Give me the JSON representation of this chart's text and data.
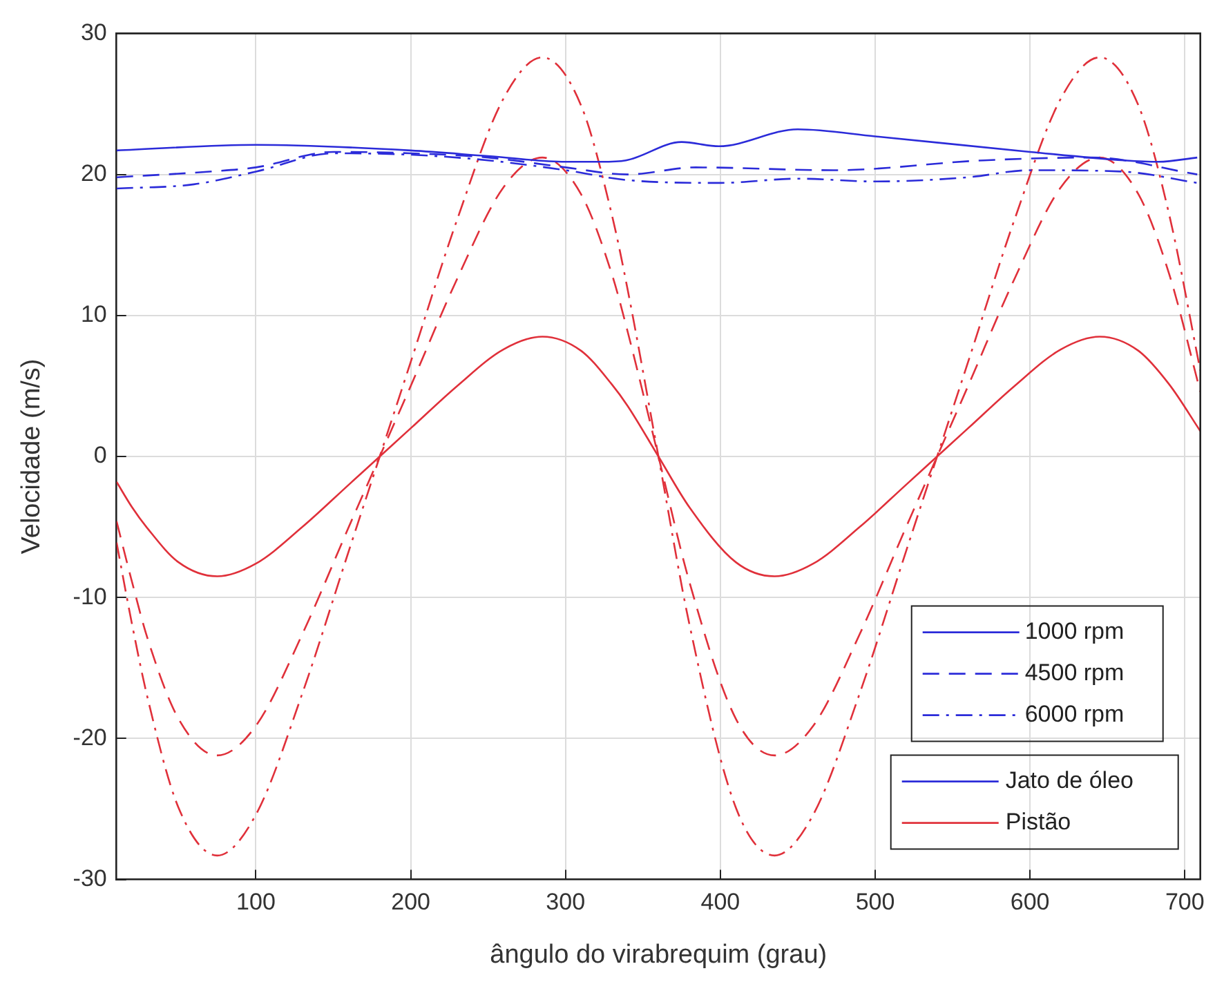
{
  "chart_data": {
    "type": "line",
    "xlabel": "ângulo do virabrequim (grau)",
    "ylabel": "Velocidade (m/s)",
    "xlim": [
      10,
      710
    ],
    "xticks": [
      100,
      200,
      300,
      400,
      500,
      600,
      700
    ],
    "ylim": [
      -30,
      30
    ],
    "yticks": [
      -30,
      -20,
      -10,
      0,
      10,
      20,
      30
    ],
    "grid": true,
    "legend": "bottom right",
    "annotations": [
      "Jato de óleo"
    ],
    "series": [
      {
        "name": "1000 rpm",
        "color": "#2b2bd9",
        "line_style": "solid",
        "x": [
          10,
          100,
          200,
          250,
          300,
          323,
          339,
          375,
          399,
          450,
          500,
          600,
          661,
          683,
          708
        ],
        "values": [
          21.7,
          22.1,
          21.7,
          21.3,
          20.9,
          20.9,
          21.0,
          22.3,
          22.0,
          23.2,
          22.7,
          21.6,
          21.0,
          20.9,
          21.2
        ]
      },
      {
        "name": "4500 rpm",
        "color": "#2b2bd9",
        "line_style": "dashed",
        "x": [
          10,
          70,
          100,
          150,
          200,
          250,
          300,
          340,
          384,
          473,
          570,
          640,
          708
        ],
        "values": [
          19.8,
          20.2,
          20.5,
          21.6,
          21.5,
          21.2,
          20.5,
          20.0,
          20.5,
          20.3,
          21.0,
          21.2,
          20.0
        ]
      },
      {
        "name": "6000 rpm",
        "color": "#2b2bd9",
        "line_style": "dashdot",
        "x": [
          10,
          60,
          100,
          150,
          200,
          250,
          300,
          340,
          400,
          450,
          500,
          560,
          600,
          660,
          708
        ],
        "values": [
          19.0,
          19.3,
          20.2,
          21.5,
          21.4,
          21.0,
          20.3,
          19.6,
          19.4,
          19.7,
          19.5,
          19.8,
          20.3,
          20.2,
          19.4
        ]
      },
      {
        "name": "Pistão",
        "color": "#e0303a",
        "line_style": "solid",
        "x": [
          10,
          20,
          30,
          50,
          75,
          100,
          130,
          160,
          180,
          200,
          230,
          260,
          285,
          310,
          330,
          340,
          360,
          380,
          410,
          435,
          460,
          490,
          520,
          540,
          560,
          590,
          620,
          645,
          670,
          690,
          710
        ],
        "values": [
          -1.8,
          -3.6,
          -5.1,
          -7.5,
          -8.5,
          -7.6,
          -5.0,
          -2.0,
          0,
          2.0,
          5.0,
          7.6,
          8.5,
          7.5,
          5.1,
          3.6,
          0,
          -3.6,
          -7.5,
          -8.5,
          -7.6,
          -5.0,
          -2.0,
          0,
          2.0,
          5.0,
          7.6,
          8.5,
          7.5,
          5.1,
          1.8
        ]
      },
      {
        "color": "#e0303a",
        "line_style": "dashed",
        "x": [
          10,
          20,
          30,
          50,
          75,
          100,
          130,
          160,
          180,
          200,
          230,
          260,
          285,
          310,
          330,
          340,
          360,
          380,
          410,
          435,
          460,
          490,
          520,
          540,
          560,
          590,
          620,
          645,
          670,
          690,
          710
        ],
        "values": [
          -4.6,
          -8.9,
          -12.9,
          -18.6,
          -21.2,
          -19.1,
          -12.6,
          -5.0,
          0,
          5.0,
          12.6,
          19.1,
          21.2,
          18.6,
          12.9,
          8.9,
          0,
          -8.9,
          -18.6,
          -21.2,
          -19.1,
          -12.6,
          -5.0,
          0,
          5.0,
          12.6,
          19.1,
          21.2,
          18.6,
          12.9,
          4.6
        ]
      },
      {
        "color": "#e0303a",
        "line_style": "dashdot",
        "x": [
          10,
          20,
          30,
          50,
          75,
          100,
          130,
          160,
          180,
          200,
          230,
          260,
          285,
          310,
          330,
          340,
          360,
          380,
          410,
          435,
          460,
          490,
          520,
          540,
          560,
          590,
          620,
          645,
          670,
          690,
          710
        ],
        "values": [
          -6.1,
          -11.9,
          -17.1,
          -24.9,
          -28.3,
          -25.4,
          -16.8,
          -6.7,
          0,
          6.7,
          16.8,
          25.4,
          28.3,
          24.9,
          17.1,
          11.9,
          0,
          -11.9,
          -24.9,
          -28.3,
          -25.4,
          -16.8,
          -6.7,
          0,
          6.7,
          16.8,
          25.4,
          28.3,
          24.9,
          17.1,
          6.1
        ]
      }
    ]
  }
}
